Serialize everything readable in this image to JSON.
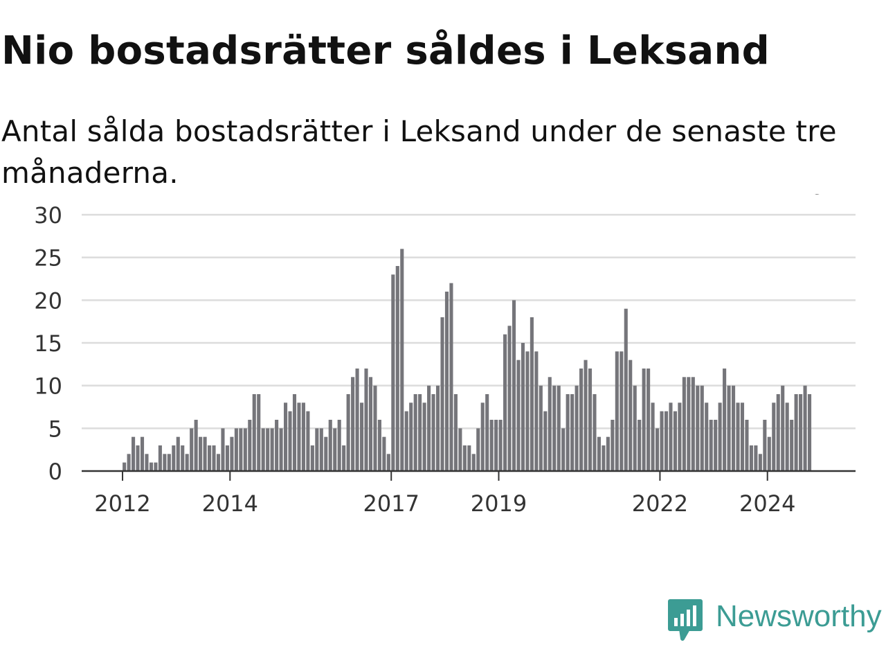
{
  "title": "Nio bostadsrätter såldes i Leksand",
  "subtitle": "Antal sålda bostadsrätter i Leksand under de senaste tre månaderna.",
  "brand": {
    "name": "Newsworthy",
    "color": "#3c9c94",
    "icon": "newsworthy-chart-logo-icon"
  },
  "colors": {
    "bar": "#75757a",
    "highlight": "#1a9c94",
    "grid": "#dcdcdc",
    "axis": "#333333"
  },
  "chart_data": {
    "type": "bar",
    "title": "Nio bostadsrätter såldes i Leksand",
    "subtitle": "Antal sålda bostadsrätter i Leksand under de senaste tre månaderna.",
    "xlabel": "",
    "ylabel": "",
    "ylim": [
      0,
      30
    ],
    "yticks": [
      0,
      5,
      10,
      15,
      20,
      25,
      30
    ],
    "grid": true,
    "xticks": [
      {
        "label": "2012",
        "date": "2012-01"
      },
      {
        "label": "2014",
        "date": "2014-01"
      },
      {
        "label": "2017",
        "date": "2017-01"
      },
      {
        "label": "2019",
        "date": "2019-01"
      },
      {
        "label": "2022",
        "date": "2022-01"
      },
      {
        "label": "2024",
        "date": "2024-01"
      }
    ],
    "x_start": "2011-04",
    "frequency": "monthly",
    "values": [
      0,
      0,
      0,
      0,
      0,
      0,
      0,
      0,
      0,
      1,
      2,
      4,
      3,
      4,
      2,
      1,
      1,
      3,
      2,
      2,
      3,
      4,
      3,
      2,
      5,
      6,
      4,
      4,
      3,
      3,
      2,
      5,
      3,
      4,
      5,
      5,
      5,
      6,
      9,
      9,
      5,
      5,
      5,
      6,
      5,
      8,
      7,
      9,
      8,
      8,
      7,
      3,
      5,
      5,
      4,
      6,
      5,
      6,
      3,
      9,
      11,
      12,
      8,
      12,
      11,
      10,
      6,
      4,
      2,
      23,
      24,
      26,
      7,
      8,
      9,
      9,
      8,
      10,
      9,
      10,
      18,
      21,
      22,
      9,
      5,
      3,
      3,
      2,
      5,
      8,
      9,
      6,
      6,
      6,
      16,
      17,
      20,
      13,
      15,
      14,
      18,
      14,
      10,
      7,
      11,
      10,
      10,
      5,
      9,
      9,
      10,
      12,
      13,
      12,
      9,
      4,
      3,
      4,
      6,
      14,
      14,
      19,
      13,
      10,
      6,
      12,
      12,
      8,
      5,
      7,
      7,
      8,
      7,
      8,
      11,
      11,
      11,
      10,
      10,
      8,
      6,
      6,
      8,
      12,
      10,
      10,
      8,
      8,
      6,
      3,
      3,
      2,
      6,
      4,
      8,
      9,
      10,
      8,
      6,
      9,
      9,
      10,
      9
    ],
    "highlight": {
      "index": 164,
      "label": "9"
    }
  }
}
